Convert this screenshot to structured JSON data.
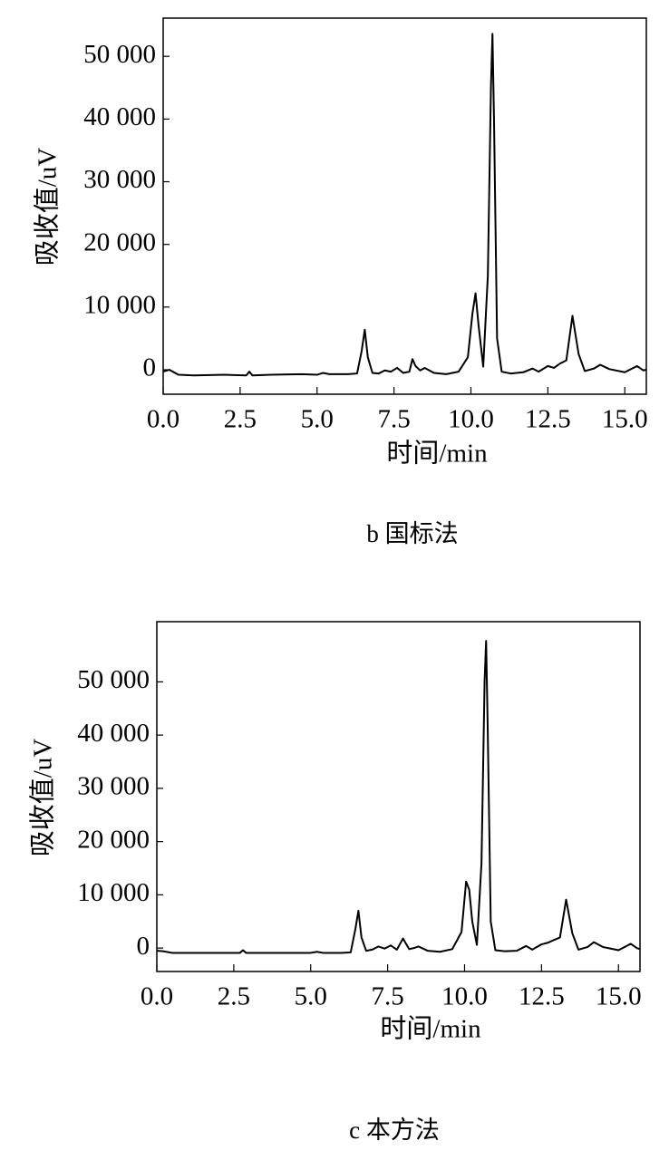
{
  "chart_data": [
    {
      "type": "line",
      "caption": "b 国标法",
      "xlabel": "时间/min",
      "ylabel": "吸收值/uV",
      "color": "#000000",
      "xlim": [
        0,
        15.7
      ],
      "ylim": [
        -3900,
        56100
      ],
      "xticks": [
        {
          "value": 0,
          "label": "0.0"
        },
        2.5,
        {
          "value": 5,
          "label": "5.0"
        },
        7.5,
        {
          "value": 10,
          "label": "10.0"
        },
        12.5,
        {
          "value": 15,
          "label": "15.0"
        }
      ],
      "yticks": [
        0,
        {
          "value": 10000,
          "label": "10 000"
        },
        {
          "value": 20000,
          "label": "20 000"
        },
        {
          "value": 30000,
          "label": "30 000"
        },
        {
          "value": 40000,
          "label": "40 000"
        },
        {
          "value": 50000,
          "label": "50 000"
        }
      ],
      "x": [
        0,
        0.2,
        0.5,
        1.0,
        2.0,
        2.7,
        2.8,
        2.9,
        3.5,
        4.5,
        5.0,
        5.2,
        5.4,
        6.0,
        6.3,
        6.45,
        6.55,
        6.65,
        6.8,
        7.0,
        7.2,
        7.4,
        7.6,
        7.8,
        8.0,
        8.1,
        8.2,
        8.35,
        8.5,
        8.8,
        9.2,
        9.6,
        9.9,
        10.05,
        10.15,
        10.25,
        10.4,
        10.55,
        10.65,
        10.7,
        10.75,
        10.85,
        11.0,
        11.3,
        11.7,
        12.0,
        12.2,
        12.5,
        12.7,
        12.9,
        13.1,
        13.3,
        13.5,
        13.7,
        14.0,
        14.2,
        14.5,
        15.0,
        15.4,
        15.6,
        15.7
      ],
      "values": [
        -300,
        0,
        -800,
        -900,
        -800,
        -900,
        -300,
        -900,
        -800,
        -700,
        -800,
        -500,
        -700,
        -700,
        -600,
        3000,
        6400,
        2000,
        -500,
        -600,
        -100,
        -300,
        300,
        -500,
        -300,
        1700,
        600,
        -100,
        300,
        -500,
        -700,
        -300,
        2000,
        9000,
        12200,
        7000,
        500,
        15000,
        45000,
        53600,
        40000,
        5000,
        -300,
        -600,
        -400,
        200,
        -300,
        600,
        300,
        1000,
        1500,
        8600,
        2500,
        -200,
        200,
        800,
        100,
        -400,
        600,
        -100,
        0
      ]
    },
    {
      "type": "line",
      "caption": "c 本方法",
      "xlabel": "时间/min",
      "ylabel": "吸收值/uV",
      "color": "#000000",
      "xlim": [
        0,
        15.7
      ],
      "ylim": [
        -4400,
        61300
      ],
      "xticks": [
        {
          "value": 0,
          "label": "0.0"
        },
        2.5,
        {
          "value": 5,
          "label": "5.0"
        },
        7.5,
        {
          "value": 10,
          "label": "10.0"
        },
        12.5,
        {
          "value": 15,
          "label": "15.0"
        }
      ],
      "yticks": [
        0,
        {
          "value": 10000,
          "label": "10 000"
        },
        {
          "value": 20000,
          "label": "20 000"
        },
        {
          "value": 30000,
          "label": "30 000"
        },
        {
          "value": 40000,
          "label": "40 000"
        },
        {
          "value": 50000,
          "label": "50 000"
        }
      ],
      "x": [
        0,
        0.2,
        0.5,
        1.0,
        2.0,
        2.7,
        2.8,
        2.9,
        3.5,
        4.5,
        5.0,
        5.2,
        5.4,
        6.0,
        6.3,
        6.45,
        6.55,
        6.65,
        6.8,
        7.0,
        7.2,
        7.4,
        7.6,
        7.8,
        8.0,
        8.1,
        8.2,
        8.35,
        8.5,
        8.8,
        9.2,
        9.6,
        9.9,
        10.05,
        10.15,
        10.25,
        10.4,
        10.55,
        10.65,
        10.7,
        10.75,
        10.85,
        11.0,
        11.3,
        11.7,
        12.0,
        12.2,
        12.5,
        12.7,
        12.9,
        13.1,
        13.3,
        13.5,
        13.7,
        14.0,
        14.2,
        14.5,
        15.0,
        15.4,
        15.6,
        15.7
      ],
      "values": [
        -500,
        -600,
        -900,
        -900,
        -900,
        -900,
        -400,
        -900,
        -900,
        -900,
        -900,
        -700,
        -900,
        -900,
        -800,
        3500,
        7000,
        2000,
        -500,
        -300,
        300,
        -100,
        500,
        -300,
        1800,
        800,
        -200,
        0,
        300,
        -500,
        -700,
        -200,
        3000,
        12500,
        11000,
        5000,
        600,
        16000,
        50000,
        57700,
        42000,
        5000,
        -400,
        -600,
        -500,
        400,
        -300,
        700,
        1000,
        1500,
        2000,
        9100,
        2800,
        -300,
        200,
        1100,
        200,
        -400,
        800,
        0,
        -200
      ]
    }
  ]
}
